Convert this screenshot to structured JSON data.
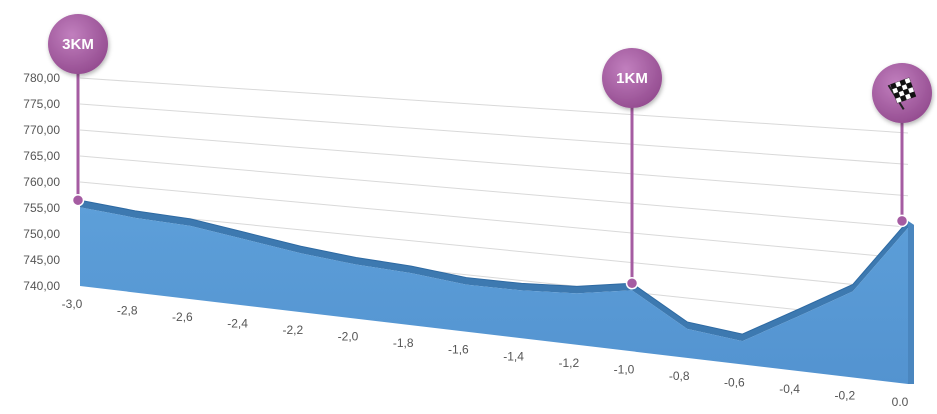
{
  "chart_data": {
    "type": "area",
    "title": "",
    "xlabel": "",
    "ylabel": "",
    "x": [
      -3.0,
      -2.8,
      -2.6,
      -2.4,
      -2.2,
      -2.0,
      -1.8,
      -1.6,
      -1.4,
      -1.2,
      -1.0,
      -0.8,
      -0.6,
      -0.4,
      -0.2,
      0.0
    ],
    "y": [
      756.5,
      755.5,
      755.0,
      753.5,
      752.0,
      751.0,
      750.5,
      749.5,
      749.5,
      750.0,
      751.5,
      746.0,
      745.0,
      750.0,
      755.0,
      766.0
    ],
    "ylim": [
      740,
      780
    ],
    "xlim": [
      -3.0,
      0.0
    ],
    "ytick_labels": [
      "740,00",
      "745,00",
      "750,00",
      "755,00",
      "760,00",
      "765,00",
      "770,00",
      "775,00",
      "780,00"
    ],
    "xtick_labels": [
      "-3,0",
      "-2,8",
      "-2,6",
      "-2,4",
      "-2,2",
      "-2,0",
      "-1,8",
      "-1,6",
      "-1,4",
      "-1,2",
      "-1,0",
      "-0,8",
      "-0,6",
      "-0,4",
      "-0,2",
      "0.0"
    ],
    "grid": true,
    "fill_color": "#5b9bd5",
    "fill_dark_color": "#3d79b0",
    "markers": [
      {
        "label": "3KM",
        "x": -3.0,
        "y": 756.5,
        "icon": ""
      },
      {
        "label": "1KM",
        "x": -1.0,
        "y": 751.5,
        "icon": ""
      },
      {
        "label": "",
        "x": 0.0,
        "y": 766.0,
        "icon": "checkered-flag-icon"
      }
    ],
    "marker_color": "#a55ca2"
  }
}
